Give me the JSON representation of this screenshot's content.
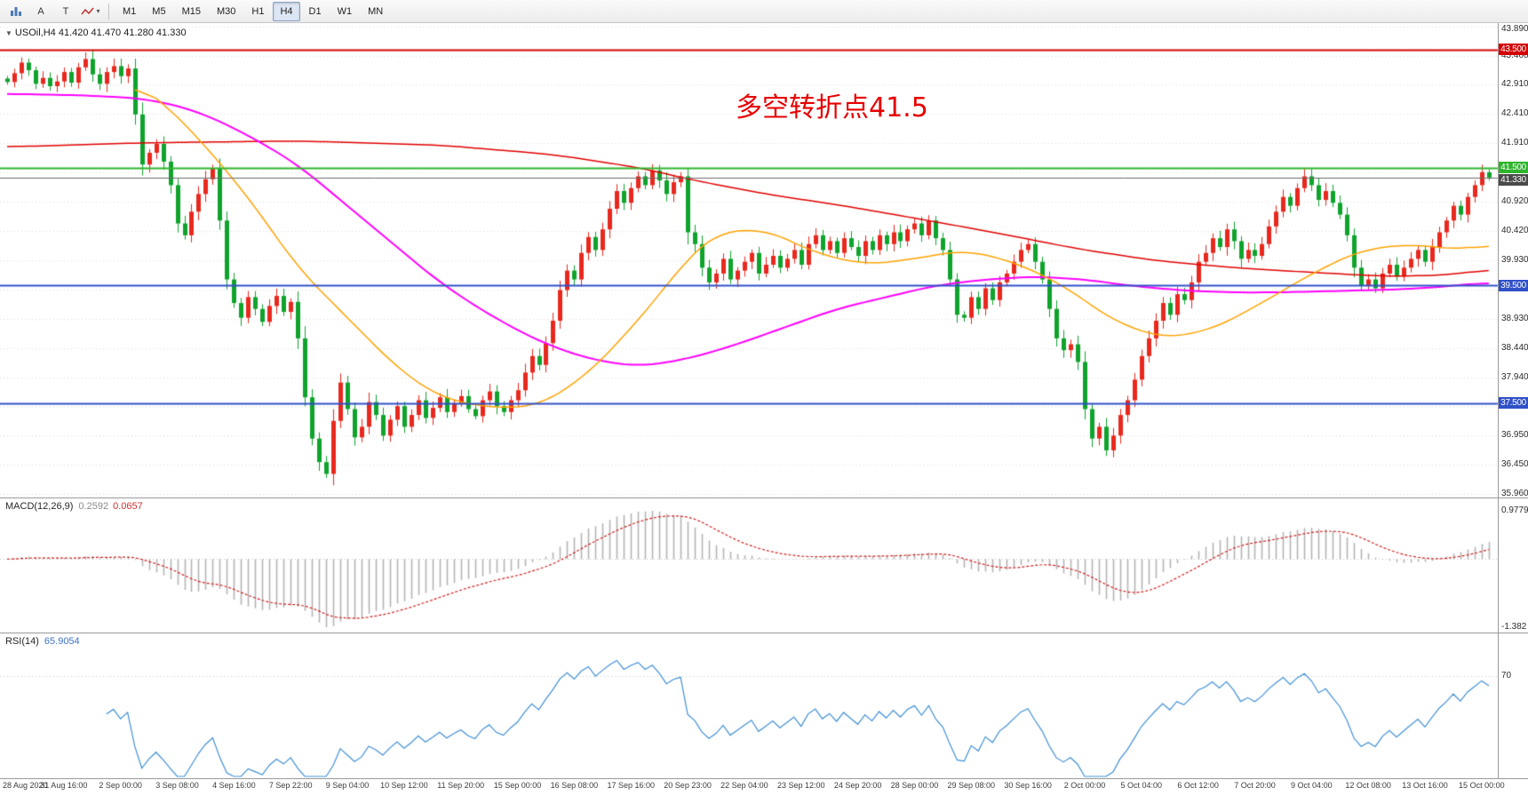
{
  "toolbar": {
    "icon_buttons": [
      {
        "name": "chart-bars-icon",
        "glyph": "bars"
      },
      {
        "name": "cursor-tool-button",
        "glyph": "A"
      },
      {
        "name": "text-tool-button",
        "glyph": "T"
      },
      {
        "name": "objects-dropdown-button",
        "glyph": "zigzag"
      }
    ],
    "timeframes": [
      {
        "label": "M1"
      },
      {
        "label": "M5"
      },
      {
        "label": "M15"
      },
      {
        "label": "M30"
      },
      {
        "label": "H1"
      },
      {
        "label": "H4",
        "active": true
      },
      {
        "label": "D1"
      },
      {
        "label": "W1"
      },
      {
        "label": "MN"
      }
    ]
  },
  "chart_info": {
    "collapse_glyph": "▼",
    "symbol_tf": "USOil,H4",
    "ohlc": "41.420 41.470 41.280 41.330"
  },
  "annotation": {
    "text": "多空转折点41.5",
    "color": "#e60000"
  },
  "price_axis": {
    "labels": [
      "43.890",
      "43.400",
      "42.910",
      "42.410",
      "41.910",
      "40.920",
      "40.420",
      "39.930",
      "38.930",
      "38.440",
      "37.940",
      "36.950",
      "36.450",
      "35.960"
    ],
    "hidden_grid": [
      41.41,
      39.43,
      37.44
    ]
  },
  "levels": [
    {
      "price": 43.5,
      "label": "43.500",
      "color": "#d40000"
    },
    {
      "price": 41.5,
      "label": "41.500",
      "color": "#2db52b"
    },
    {
      "price": 39.5,
      "label": "39.500",
      "color": "#3050c8"
    },
    {
      "price": 37.5,
      "label": "37.500",
      "color": "#3050c8"
    }
  ],
  "bid": {
    "price": 41.33,
    "label": "41.330",
    "color": "#4a4a4a"
  },
  "macd_panel": {
    "title": "MACD(12,26,9)",
    "value_main": "0.2592",
    "value_signal": "0.0657",
    "scale_max": "0.9779",
    "scale_min": "-1.382"
  },
  "rsi_panel": {
    "title": "RSI(14)",
    "value": "65.9054",
    "level_label": "70"
  },
  "time_axis": {
    "labels": [
      "28 Aug 2020",
      "31 Aug 16:00",
      "2 Sep 00:00",
      "3 Sep 08:00",
      "4 Sep 16:00",
      "7 Sep 22:00",
      "9 Sep 04:00",
      "10 Sep 12:00",
      "11 Sep 20:00",
      "15 Sep 00:00",
      "16 Sep 08:00",
      "17 Sep 16:00",
      "20 Sep 23:00",
      "22 Sep 04:00",
      "23 Sep 12:00",
      "24 Sep 20:00",
      "28 Sep 00:00",
      "29 Sep 08:00",
      "30 Sep 16:00",
      "2 Oct 00:00",
      "5 Oct 04:00",
      "6 Oct 12:00",
      "7 Oct 20:00",
      "9 Oct 04:00",
      "12 Oct 08:00",
      "13 Oct 16:00",
      "15 Oct 00:00"
    ]
  },
  "chart_data": {
    "type": "candlestick",
    "symbol": "USOil",
    "timeframe": "H4",
    "y_axis": {
      "min": 35.96,
      "max": 43.89
    },
    "last_ohlc": {
      "open": 41.42,
      "high": 41.47,
      "low": 41.28,
      "close": 41.33
    },
    "up_color": "#e8281e",
    "down_color": "#0fa32c",
    "closes": [
      42.95,
      43.1,
      43.28,
      43.15,
      42.92,
      43.02,
      42.88,
      42.96,
      43.12,
      42.94,
      43.2,
      43.34,
      43.08,
      42.92,
      43.12,
      43.22,
      43.05,
      43.18,
      42.4,
      41.55,
      41.75,
      41.9,
      41.6,
      41.2,
      40.55,
      40.35,
      40.75,
      41.05,
      41.3,
      41.48,
      40.6,
      39.6,
      39.2,
      38.95,
      39.3,
      39.1,
      38.88,
      39.15,
      39.32,
      39.05,
      39.22,
      38.6,
      37.6,
      36.9,
      36.5,
      36.3,
      37.2,
      37.85,
      37.4,
      36.92,
      37.1,
      37.52,
      37.3,
      36.95,
      37.22,
      37.45,
      37.1,
      37.3,
      37.55,
      37.25,
      37.42,
      37.6,
      37.35,
      37.5,
      37.62,
      37.4,
      37.28,
      37.55,
      37.7,
      37.45,
      37.35,
      37.55,
      37.72,
      38.02,
      38.3,
      38.15,
      38.52,
      38.9,
      39.42,
      39.75,
      39.6,
      40.05,
      40.32,
      40.1,
      40.45,
      40.8,
      41.1,
      40.9,
      41.15,
      41.35,
      41.2,
      41.45,
      41.28,
      41.05,
      41.25,
      41.35,
      40.4,
      40.2,
      39.8,
      39.55,
      39.7,
      39.95,
      39.6,
      39.75,
      39.9,
      40.05,
      39.7,
      39.85,
      40.0,
      39.8,
      39.95,
      40.1,
      39.85,
      40.2,
      40.35,
      40.1,
      40.25,
      40.05,
      40.3,
      40.15,
      40.0,
      40.25,
      40.1,
      40.35,
      40.2,
      40.4,
      40.25,
      40.45,
      40.55,
      40.35,
      40.6,
      40.3,
      40.1,
      39.6,
      39.0,
      38.95,
      39.3,
      39.1,
      39.45,
      39.25,
      39.55,
      39.7,
      39.9,
      40.1,
      40.2,
      39.9,
      39.6,
      39.1,
      38.6,
      38.4,
      38.5,
      38.2,
      37.4,
      36.9,
      37.1,
      36.7,
      36.95,
      37.3,
      37.55,
      37.9,
      38.3,
      38.6,
      38.9,
      39.2,
      39.0,
      39.35,
      39.25,
      39.55,
      39.9,
      40.05,
      40.3,
      40.15,
      40.45,
      40.25,
      39.95,
      40.1,
      40.0,
      40.2,
      40.5,
      40.75,
      41.0,
      40.85,
      41.15,
      41.35,
      41.2,
      40.95,
      41.1,
      40.9,
      40.7,
      40.35,
      39.8,
      39.5,
      39.6,
      39.45,
      39.7,
      39.85,
      39.65,
      39.8,
      39.95,
      40.1,
      39.9,
      40.15,
      40.4,
      40.6,
      40.85,
      40.7,
      41.0,
      41.2,
      41.42,
      41.33
    ],
    "ma_overlays": [
      {
        "name": "ma-slow-red",
        "color": "#e00000",
        "width": 1.5,
        "points": [
          [
            0,
            41.85
          ],
          [
            20,
            41.92
          ],
          [
            41,
            41.95
          ],
          [
            61,
            41.88
          ],
          [
            77,
            41.72
          ],
          [
            89,
            41.5
          ],
          [
            97,
            41.28
          ],
          [
            107,
            41.05
          ],
          [
            118,
            40.85
          ],
          [
            129,
            40.62
          ],
          [
            140,
            40.38
          ],
          [
            151,
            40.12
          ],
          [
            162,
            39.92
          ],
          [
            173,
            39.8
          ],
          [
            184,
            39.72
          ],
          [
            195,
            39.65
          ],
          [
            204,
            39.68
          ],
          [
            209,
            39.78
          ]
        ]
      },
      {
        "name": "ma-mid-magenta",
        "color": "#ff00ff",
        "width": 2,
        "points": [
          [
            0,
            42.75
          ],
          [
            12,
            42.72
          ],
          [
            20,
            42.66
          ],
          [
            27,
            42.45
          ],
          [
            34,
            42.05
          ],
          [
            41,
            41.55
          ],
          [
            48,
            40.85
          ],
          [
            55,
            40.15
          ],
          [
            61,
            39.55
          ],
          [
            68,
            39.0
          ],
          [
            75,
            38.55
          ],
          [
            82,
            38.25
          ],
          [
            89,
            38.12
          ],
          [
            96,
            38.25
          ],
          [
            103,
            38.5
          ],
          [
            110,
            38.8
          ],
          [
            117,
            39.1
          ],
          [
            124,
            39.3
          ],
          [
            131,
            39.5
          ],
          [
            138,
            39.6
          ],
          [
            145,
            39.65
          ],
          [
            152,
            39.6
          ],
          [
            158,
            39.5
          ],
          [
            165,
            39.42
          ],
          [
            172,
            39.38
          ],
          [
            179,
            39.38
          ],
          [
            186,
            39.4
          ],
          [
            193,
            39.42
          ],
          [
            200,
            39.45
          ],
          [
            209,
            39.55
          ]
        ]
      },
      {
        "name": "ma-fast-orange",
        "color": "#ffa200",
        "width": 1.5,
        "points": [
          [
            18,
            42.95
          ],
          [
            22,
            42.6
          ],
          [
            27,
            42.0
          ],
          [
            34,
            41.0
          ],
          [
            41,
            39.8
          ],
          [
            48,
            38.95
          ],
          [
            55,
            38.1
          ],
          [
            61,
            37.6
          ],
          [
            68,
            37.42
          ],
          [
            75,
            37.45
          ],
          [
            82,
            38.0
          ],
          [
            89,
            38.9
          ],
          [
            96,
            39.95
          ],
          [
            100,
            40.4
          ],
          [
            107,
            40.45
          ],
          [
            114,
            40.05
          ],
          [
            121,
            39.85
          ],
          [
            128,
            39.95
          ],
          [
            135,
            40.1
          ],
          [
            142,
            39.9
          ],
          [
            149,
            39.5
          ],
          [
            156,
            38.9
          ],
          [
            163,
            38.6
          ],
          [
            170,
            38.75
          ],
          [
            177,
            39.2
          ],
          [
            184,
            39.7
          ],
          [
            191,
            40.1
          ],
          [
            198,
            40.2
          ],
          [
            205,
            40.1
          ],
          [
            209,
            40.2
          ]
        ]
      }
    ],
    "hlines": [
      43.5,
      41.5,
      39.5,
      37.5
    ],
    "macd": {
      "fast": 12,
      "slow": 26,
      "signal_period": 9,
      "scale_max": 0.9779,
      "scale_min": -1.382,
      "hist_color": "#b4b4b4",
      "signal_color": "#d02020",
      "last_values": [
        0.2592,
        0.0657
      ]
    },
    "rsi": {
      "period": 14,
      "color": "#3f8fd4",
      "level": 70,
      "last_value": 65.9054
    }
  }
}
